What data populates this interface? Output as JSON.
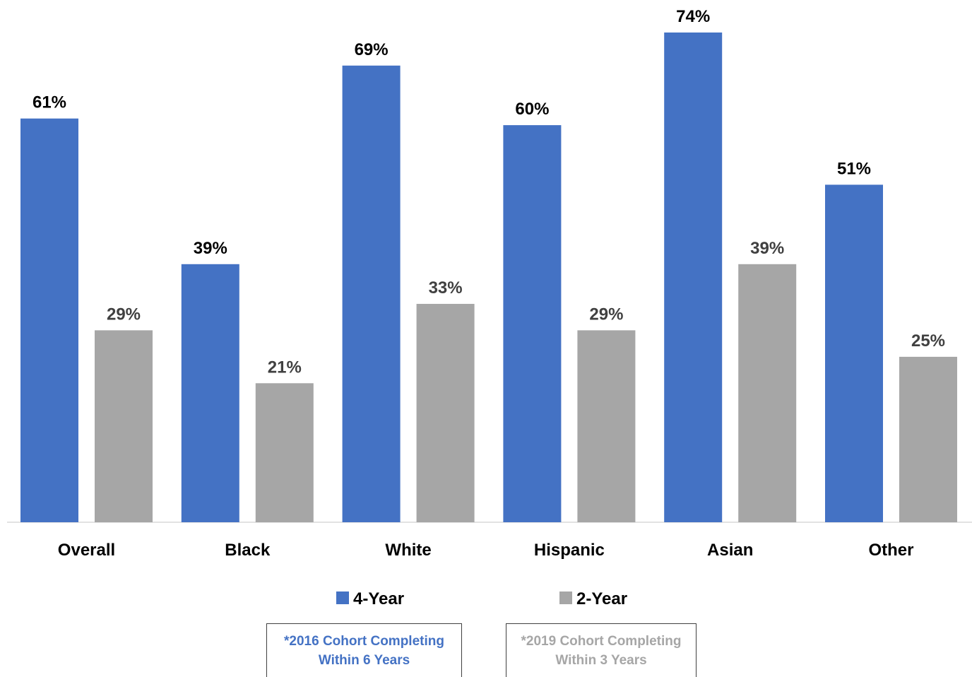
{
  "chart_data": {
    "type": "bar",
    "categories": [
      "Overall",
      "Black",
      "White",
      "Hispanic",
      "Asian",
      "Other"
    ],
    "series": [
      {
        "name": "4-Year",
        "values": [
          61,
          39,
          69,
          60,
          74,
          51
        ],
        "color": "#4472C4",
        "label_color": "#000000"
      },
      {
        "name": "2-Year",
        "values": [
          29,
          21,
          33,
          29,
          39,
          25
        ],
        "color": "#A6A6A6",
        "label_color": "#404040"
      }
    ],
    "value_suffix": "%",
    "ylim": [
      0,
      74
    ],
    "grid": false,
    "legend": "bottom-center",
    "title": "",
    "xlabel": "",
    "ylabel": ""
  },
  "notes": [
    {
      "text": "*2016 Cohort Completing Within 6 Years",
      "color": "#4472C4"
    },
    {
      "text": "*2019 Cohort Completing Within 3 Years",
      "color": "#A6A6A6"
    }
  ]
}
